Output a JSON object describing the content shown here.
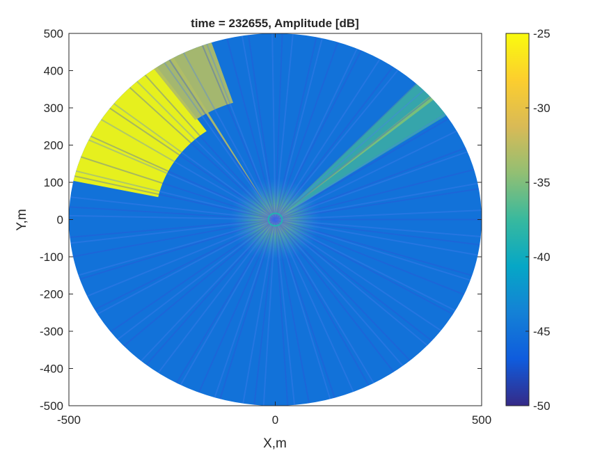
{
  "chart_data": {
    "type": "heatmap",
    "title": "time = 232655, Amplitude [dB]",
    "xlabel": "X,m",
    "ylabel": "Y,m",
    "xlim": [
      -500,
      500
    ],
    "ylim": [
      -500,
      500
    ],
    "x_ticks": [
      -500,
      0,
      500
    ],
    "y_ticks": [
      500,
      400,
      300,
      200,
      100,
      0,
      -100,
      -200,
      -300,
      -400,
      -500
    ],
    "colorbar": {
      "clim": [
        -50,
        -25
      ],
      "ticks": [
        -25,
        -30,
        -35,
        -40,
        -45,
        -50
      ],
      "colormap": "parula",
      "stops": [
        "#352a87",
        "#0f5cdd",
        "#1481d6",
        "#06a7c6",
        "#38b99e",
        "#92bf73",
        "#d9ba56",
        "#fcce2e",
        "#f9fb0e"
      ]
    },
    "max_range_m": 500,
    "background_db": -45,
    "features": [
      {
        "name": "strong-return-region-nw",
        "angle_deg": [
          125,
          168
        ],
        "range_m": [
          290,
          500
        ],
        "db": -25
      },
      {
        "name": "moderate-return-region-nnw",
        "angle_deg": [
          108,
          126
        ],
        "range_m": [
          330,
          500
        ],
        "db": -33
      },
      {
        "name": "beam-nw",
        "angle_deg": [
          119.5,
          120.5
        ],
        "range_m": [
          0,
          500
        ],
        "db": -33
      },
      {
        "name": "beam-ne",
        "angle_deg": [
          40,
          41.5
        ],
        "range_m": [
          0,
          500
        ],
        "db": -28
      },
      {
        "name": "wedge-ne",
        "angle_deg": [
          34,
          47
        ],
        "range_m": [
          0,
          500
        ],
        "db": -37
      },
      {
        "name": "near-field-center",
        "angle_deg": [
          0,
          360
        ],
        "range_m": [
          0,
          70
        ],
        "db": -35
      }
    ]
  }
}
